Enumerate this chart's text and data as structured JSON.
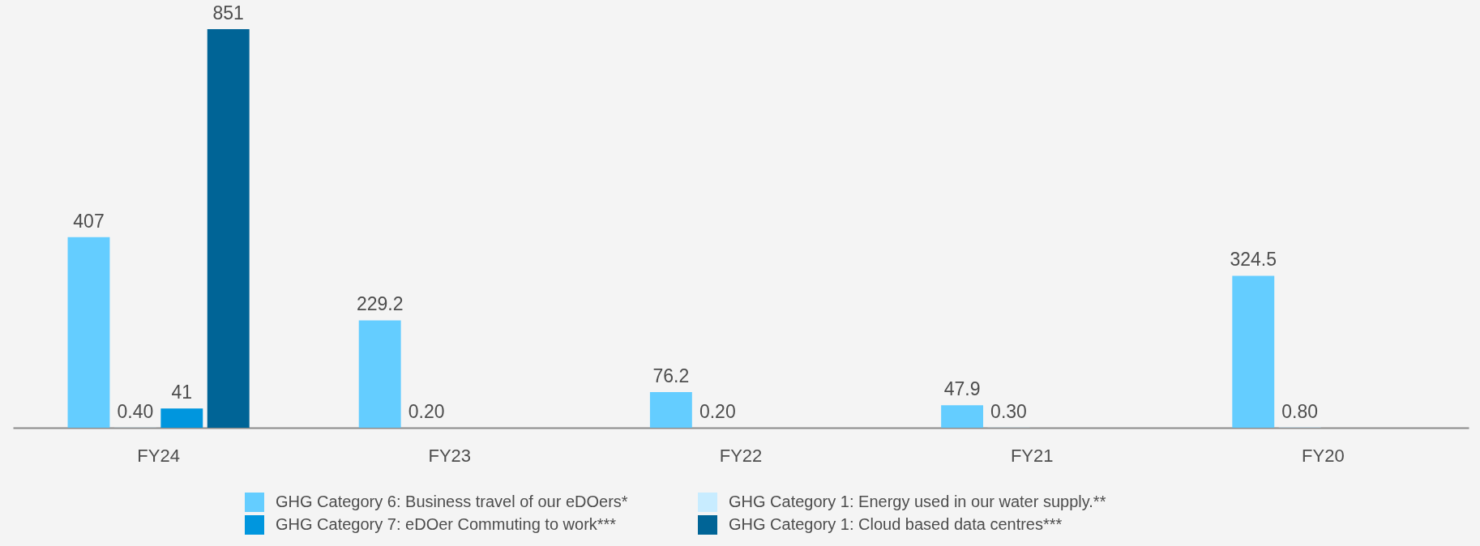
{
  "chart_data": {
    "type": "bar",
    "categories": [
      "FY24",
      "FY23",
      "FY22",
      "FY21",
      "FY20"
    ],
    "series": [
      {
        "name": "GHG Category 6:  Business travel of our eDOers*",
        "color": "#64cdff",
        "values": [
          407,
          229.2,
          76.2,
          47.9,
          324.5
        ],
        "value_labels": [
          "407",
          "229.2",
          "76.2",
          "47.9",
          "324.5"
        ]
      },
      {
        "name": "GHG Category 1:  Energy used in our water supply.**",
        "color": "#c8ecff",
        "values": [
          0.4,
          0.2,
          0.2,
          0.3,
          0.8
        ],
        "value_labels": [
          "0.40",
          "0.20",
          "0.20",
          "0.30",
          "0.80"
        ]
      },
      {
        "name": "GHG Category 7:  eDOer Commuting to work***",
        "color": "#0096de",
        "values": [
          41,
          null,
          null,
          null,
          null
        ],
        "value_labels": [
          "41",
          null,
          null,
          null,
          null
        ]
      },
      {
        "name": "GHG Category 1: Cloud based data centres***",
        "color": "#006496",
        "values": [
          851,
          null,
          null,
          null,
          null
        ],
        "value_labels": [
          "851",
          null,
          null,
          null,
          null
        ]
      }
    ],
    "legend": "bottom"
  }
}
